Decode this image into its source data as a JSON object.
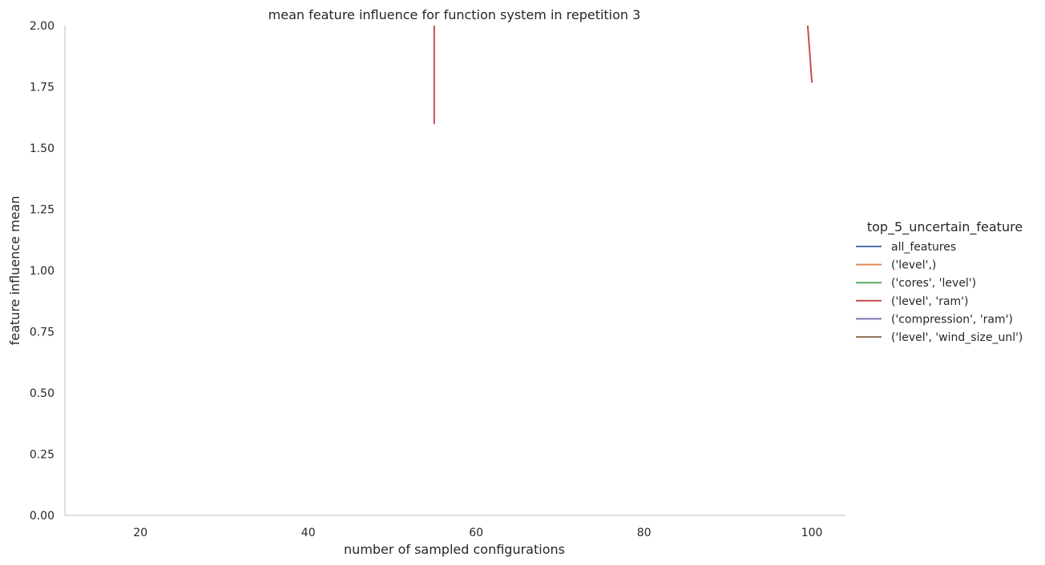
{
  "chart_data": {
    "type": "line",
    "title": "mean feature influence for function system in repetition 3",
    "xlabel": "number of sampled configurations",
    "ylabel": "feature influence mean",
    "xlim": [
      11,
      104
    ],
    "ylim": [
      0,
      2
    ],
    "xticks": [
      20,
      40,
      60,
      80,
      100
    ],
    "yticks": [
      0.0,
      0.25,
      0.5,
      0.75,
      1.0,
      1.25,
      1.5,
      1.75,
      2.0
    ],
    "ytick_labels": [
      "0.00",
      "0.25",
      "0.50",
      "0.75",
      "1.00",
      "1.25",
      "1.50",
      "1.75",
      "2.00"
    ],
    "grid": false,
    "legend": {
      "title": "top_5_uncertain_feature",
      "placement": "right"
    },
    "series": [
      {
        "name": "all_features",
        "color": "#4c72b0",
        "points": []
      },
      {
        "name": "('level',)",
        "color": "#dd8452",
        "points": []
      },
      {
        "name": "('cores', 'level')",
        "color": "#55a868",
        "points": []
      },
      {
        "name": "('level', 'ram')",
        "color": "#c44e52",
        "segments": [
          [
            [
              55.0,
              2.3
            ],
            [
              55.0,
              1.6
            ]
          ],
          [
            [
              99.5,
              2.0
            ],
            [
              100.0,
              1.77
            ]
          ]
        ]
      },
      {
        "name": "('compression', 'ram')",
        "color": "#8172b3",
        "points": []
      },
      {
        "name": "('level', 'wind_size_unl')",
        "color": "#937860",
        "points": []
      }
    ]
  }
}
